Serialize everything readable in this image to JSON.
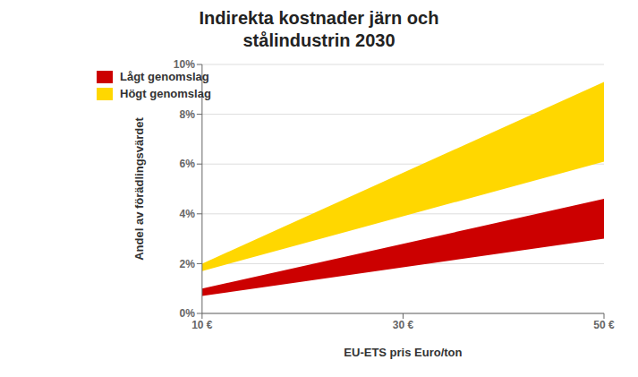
{
  "chart_data": {
    "type": "area",
    "title": "Indirekta kostnader järn och\nstålindustrin 2030",
    "x_label": "EU-ETS pris Euro/ton",
    "y_label": "Andel av förädlingsvärdet",
    "x": [
      10,
      50
    ],
    "series": [
      {
        "name": "Lågt genomslag",
        "color": "#CC0000",
        "lower": [
          0.007,
          0.03
        ],
        "upper": [
          0.01,
          0.046
        ]
      },
      {
        "name": "Högt genomslag",
        "color": "#FFD700",
        "lower": [
          0.017,
          0.061
        ],
        "upper": [
          0.02,
          0.093
        ]
      }
    ],
    "xlim": [
      10,
      50
    ],
    "xticks": [
      {
        "value": 10,
        "label": "10 €"
      },
      {
        "value": 30,
        "label": "30 €"
      },
      {
        "value": 50,
        "label": "50 €"
      }
    ],
    "ylim": [
      0.0,
      0.1
    ],
    "yticks": [
      {
        "value": 0.0,
        "label": "0%"
      },
      {
        "value": 0.02,
        "label": "2%"
      },
      {
        "value": 0.04,
        "label": "4%"
      },
      {
        "value": 0.06,
        "label": "6%"
      },
      {
        "value": 0.08,
        "label": "8%"
      },
      {
        "value": 0.1,
        "label": "10%"
      }
    ],
    "grid": true,
    "legend": "upper left"
  }
}
